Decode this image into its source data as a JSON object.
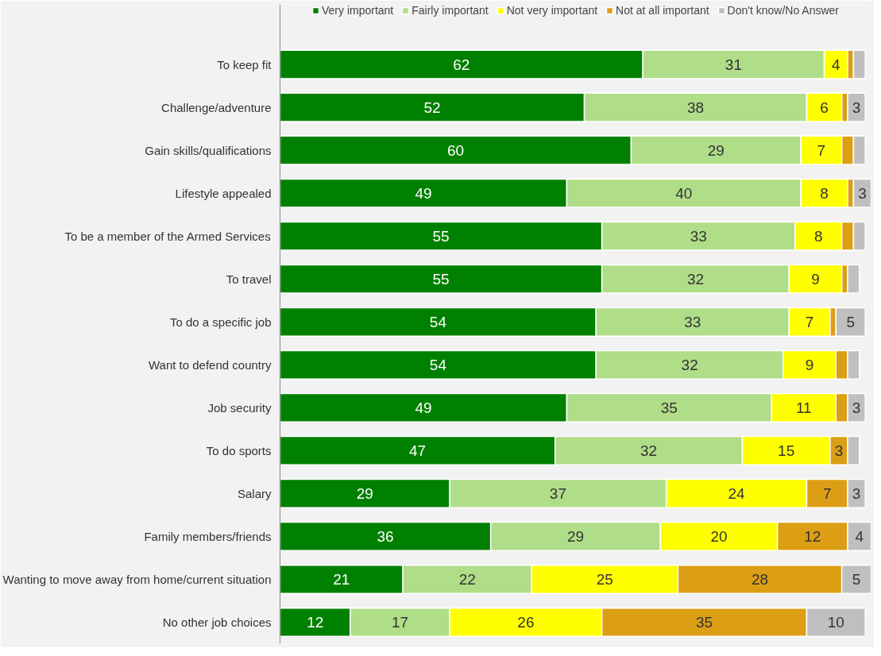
{
  "chart_data": {
    "type": "bar",
    "orientation": "horizontal",
    "stacked": true,
    "legend": "top",
    "grid": false,
    "tick_labels": "y",
    "xlim": [
      0,
      101
    ],
    "categories": [
      "To keep fit",
      "Challenge/adventure",
      "Gain skills/qualifications",
      "Lifestyle appealed",
      "To be a member of the Armed Services",
      "To travel",
      "To do a specific job",
      "Want to defend country",
      "Job security",
      "To do sports",
      "Salary",
      "Family members/friends",
      "Wanting to move away from home/current situation",
      "No other job choices"
    ],
    "series": [
      {
        "name": "Very important",
        "color": "#008000",
        "values": [
          62,
          52,
          60,
          49,
          55,
          55,
          54,
          54,
          49,
          47,
          29,
          36,
          21,
          12
        ],
        "value_labels": [
          "62",
          "52",
          "60",
          "49",
          "55",
          "55",
          "54",
          "54",
          "49",
          "47",
          "29",
          "36",
          "21",
          "12"
        ]
      },
      {
        "name": "Fairly important",
        "color": "#b0dd88",
        "values": [
          31,
          38,
          29,
          40,
          33,
          32,
          33,
          32,
          35,
          32,
          37,
          29,
          22,
          17
        ],
        "value_labels": [
          "31",
          "38",
          "29",
          "40",
          "33",
          "32",
          "33",
          "32",
          "35",
          "32",
          "37",
          "29",
          "22",
          "17"
        ]
      },
      {
        "name": "Not very important",
        "color": "#ffff00",
        "values": [
          4,
          6,
          7,
          8,
          8,
          9,
          7,
          9,
          11,
          15,
          24,
          20,
          25,
          26
        ],
        "value_labels": [
          "4",
          "6",
          "7",
          "8",
          "8",
          "9",
          "7",
          "9",
          "11",
          "15",
          "24",
          "20",
          "25",
          "26"
        ]
      },
      {
        "name": "Not at all important",
        "color": "#dc9e14",
        "values": [
          1,
          1,
          2,
          1,
          2,
          1,
          1,
          2,
          2,
          3,
          7,
          12,
          28,
          35
        ],
        "value_labels": [
          null,
          null,
          null,
          null,
          null,
          null,
          null,
          null,
          null,
          "3",
          "7",
          "12",
          "28",
          "35"
        ]
      },
      {
        "name": "Don't know/No Answer",
        "color": "#bfbfbf",
        "values": [
          2,
          3,
          2,
          3,
          2,
          2,
          5,
          2,
          3,
          2,
          3,
          4,
          5,
          10
        ],
        "value_labels": [
          null,
          "3",
          null,
          "3",
          null,
          null,
          "5",
          null,
          "3",
          null,
          "3",
          "4",
          "5",
          "10"
        ]
      }
    ]
  }
}
